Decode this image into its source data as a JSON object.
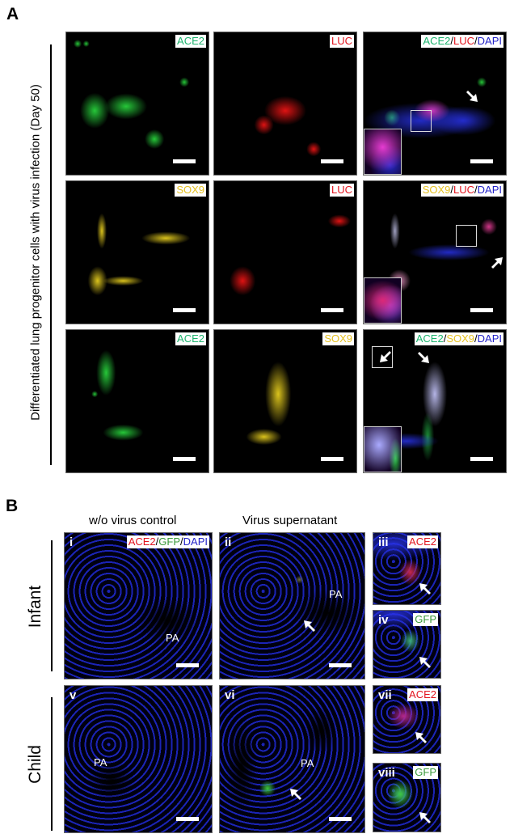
{
  "panel_a": {
    "label": "A",
    "side_label": "Differentiated lung progenitor cells with virus infection (Day 50)",
    "rows": [
      {
        "panels": [
          {
            "channels": [
              {
                "text": "ACE2",
                "color": "#1db36e"
              }
            ]
          },
          {
            "channels": [
              {
                "text": "LUC",
                "color": "#e3141e"
              }
            ]
          },
          {
            "channels": [
              {
                "text": "ACE2",
                "color": "#1db36e"
              },
              {
                "text": "LUC",
                "color": "#e3141e"
              },
              {
                "text": "DAPI",
                "color": "#2323c8"
              }
            ]
          }
        ]
      },
      {
        "panels": [
          {
            "channels": [
              {
                "text": "SOX9",
                "color": "#e5c020"
              }
            ]
          },
          {
            "channels": [
              {
                "text": "LUC",
                "color": "#e3141e"
              }
            ]
          },
          {
            "channels": [
              {
                "text": "SOX9",
                "color": "#e5c020"
              },
              {
                "text": "LUC",
                "color": "#e3141e"
              },
              {
                "text": "DAPI",
                "color": "#2323c8"
              }
            ]
          }
        ]
      },
      {
        "panels": [
          {
            "channels": [
              {
                "text": "ACE2",
                "color": "#1db36e"
              }
            ]
          },
          {
            "channels": [
              {
                "text": "SOX9",
                "color": "#e5c020"
              }
            ]
          },
          {
            "channels": [
              {
                "text": "ACE2",
                "color": "#1db36e"
              },
              {
                "text": "SOX9",
                "color": "#e5c020"
              },
              {
                "text": "DAPI",
                "color": "#2323c8"
              }
            ]
          }
        ]
      }
    ]
  },
  "panel_b": {
    "label": "B",
    "column_headers": [
      "w/o virus control",
      "Virus supernatant"
    ],
    "row_labels": [
      "Infant",
      "Child"
    ],
    "separator": "/",
    "panels": [
      {
        "numeral": "i",
        "pa": "PA",
        "channels": [
          {
            "text": "ACE2",
            "color": "#e3141e"
          },
          {
            "text": "GFP",
            "color": "#3a9a3a"
          },
          {
            "text": "DAPI",
            "color": "#2323c8"
          }
        ]
      },
      {
        "numeral": "ii",
        "pa": "PA"
      },
      {
        "numeral": "iii",
        "channels": [
          {
            "text": "ACE2",
            "color": "#e3141e"
          }
        ]
      },
      {
        "numeral": "iv",
        "channels": [
          {
            "text": "GFP",
            "color": "#3a9a3a"
          }
        ]
      },
      {
        "numeral": "v",
        "pa": "PA"
      },
      {
        "numeral": "vi",
        "pa": "PA"
      },
      {
        "numeral": "vii",
        "channels": [
          {
            "text": "ACE2",
            "color": "#e3141e"
          }
        ]
      },
      {
        "numeral": "viii",
        "channels": [
          {
            "text": "GFP",
            "color": "#3a9a3a"
          }
        ]
      }
    ]
  }
}
